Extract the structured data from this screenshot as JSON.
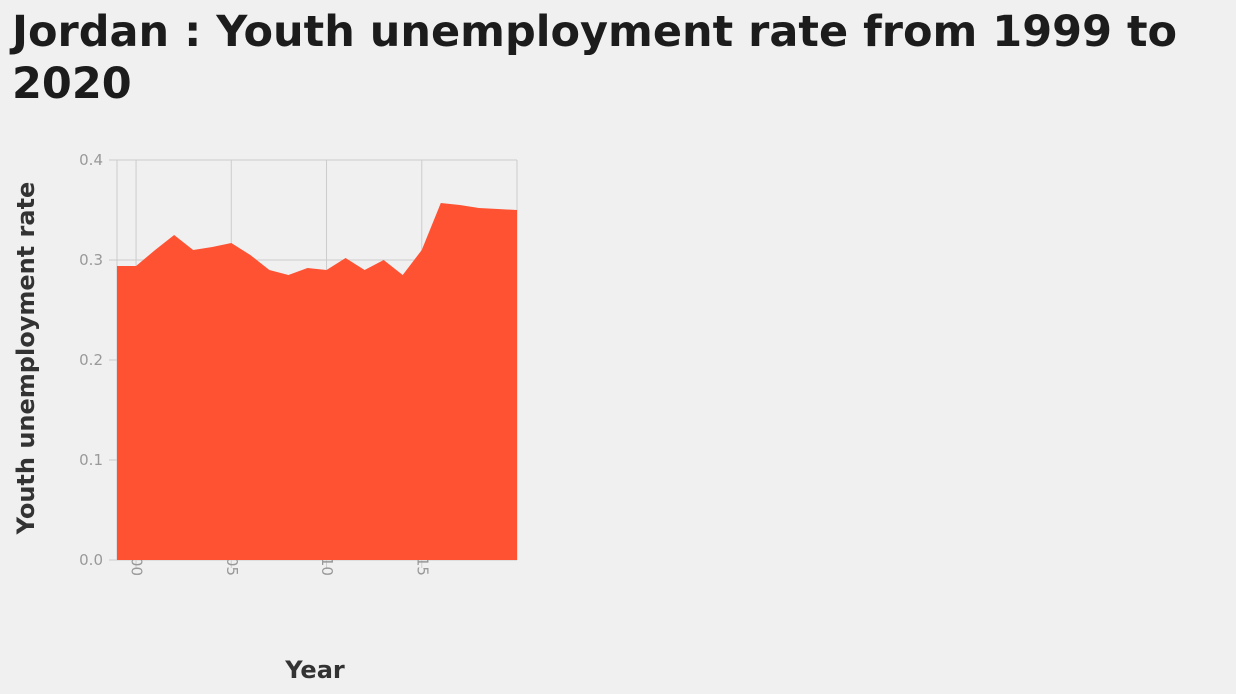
{
  "title": "Jordan : Youth unemployment rate from 1999 to 2020",
  "colors": {
    "area": "#ff5233",
    "grid": "#cccccc",
    "background": "#f0f0f0"
  },
  "chart_data": {
    "type": "area",
    "title": "Jordan : Youth unemployment rate from 1999 to 2020",
    "xlabel": "Year",
    "ylabel": "Youth unemployment rate",
    "xlim": [
      1999,
      2020
    ],
    "ylim": [
      0,
      0.4
    ],
    "grid": true,
    "x_ticks": [
      "2000",
      "2005",
      "2010",
      "2015"
    ],
    "y_ticks": [
      "0.0",
      "0.1",
      "0.2",
      "0.3",
      "0.4"
    ],
    "series": [
      {
        "x": [
          1999,
          2000,
          2001,
          2002,
          2003,
          2004,
          2005,
          2006,
          2007,
          2008,
          2009,
          2010,
          2011,
          2012,
          2013,
          2014,
          2015,
          2016,
          2017,
          2018,
          2019,
          2020
        ],
        "values": [
          0.294,
          0.294,
          0.31,
          0.325,
          0.31,
          0.313,
          0.317,
          0.305,
          0.29,
          0.285,
          0.292,
          0.29,
          0.302,
          0.29,
          0.3,
          0.285,
          0.31,
          0.357,
          0.355,
          0.352,
          0.351,
          0.35
        ]
      }
    ]
  }
}
